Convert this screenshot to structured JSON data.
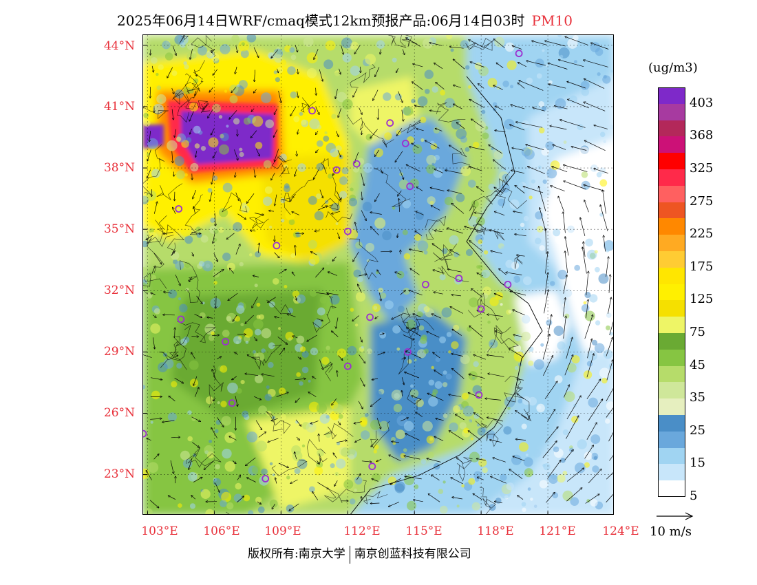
{
  "title": {
    "main": "2025年06月14日WRF/cmaq模式12km预报产品:06月14日03时",
    "pollutant": "PM10",
    "pollutant_color": "#e8303a"
  },
  "axes": {
    "lat_labels": [
      "44°N",
      "41°N",
      "38°N",
      "35°N",
      "32°N",
      "29°N",
      "26°N",
      "23°N"
    ],
    "lon_labels": [
      "103°E",
      "106°E",
      "109°E",
      "112°E",
      "115°E",
      "118°E",
      "121°E",
      "124°E"
    ],
    "label_color": "#e8303a"
  },
  "colorbar": {
    "unit": "(ug/m3)",
    "labels": [
      "403",
      "368",
      "325",
      "275",
      "225",
      "175",
      "125",
      "75",
      "45",
      "35",
      "25",
      "15",
      "5"
    ],
    "colors": [
      "#7e29c9",
      "#a73aa0",
      "#b3285a",
      "#cc1177",
      "#ff0000",
      "#ff2a4a",
      "#ff6060",
      "#ee5522",
      "#ff8800",
      "#ffaa22",
      "#ffcc33",
      "#ffe600",
      "#fff000",
      "#f5e000",
      "#eef566",
      "#6aaa33",
      "#86c542",
      "#b6dc6a",
      "#cfe79a",
      "#e6efbf",
      "#4a8ec7",
      "#6aa8dc",
      "#a0d4f2",
      "#c8e6fa",
      "#ffffff"
    ]
  },
  "vector_reference": {
    "label": "10 m/s"
  },
  "footer": {
    "left": "版权所有:南京大学",
    "right": "南京创蓝科技有限公司"
  },
  "map": {
    "extent": {
      "lon_min": 102.8,
      "lon_max": 124.0,
      "lat_min": 21.0,
      "lat_max": 44.5
    },
    "city_marker_color": "#9b2fd0",
    "cities": [
      {
        "lon": 119.7,
        "lat": 43.6
      },
      {
        "lon": 110.4,
        "lat": 40.8
      },
      {
        "lon": 113.9,
        "lat": 40.2
      },
      {
        "lon": 114.6,
        "lat": 39.2
      },
      {
        "lon": 111.5,
        "lat": 37.9
      },
      {
        "lon": 112.4,
        "lat": 38.2
      },
      {
        "lon": 114.8,
        "lat": 37.1
      },
      {
        "lon": 104.4,
        "lat": 36.0
      },
      {
        "lon": 112.0,
        "lat": 34.9
      },
      {
        "lon": 108.8,
        "lat": 34.2
      },
      {
        "lon": 115.5,
        "lat": 32.3
      },
      {
        "lon": 117.0,
        "lat": 32.6
      },
      {
        "lon": 119.2,
        "lat": 32.3
      },
      {
        "lon": 118.0,
        "lat": 31.1
      },
      {
        "lon": 104.5,
        "lat": 30.6
      },
      {
        "lon": 113.0,
        "lat": 30.7
      },
      {
        "lon": 106.5,
        "lat": 29.5
      },
      {
        "lon": 114.7,
        "lat": 29.0
      },
      {
        "lon": 112.0,
        "lat": 28.3
      },
      {
        "lon": 106.8,
        "lat": 26.5
      },
      {
        "lon": 117.9,
        "lat": 26.9
      },
      {
        "lon": 102.8,
        "lat": 25.0
      },
      {
        "lon": 113.1,
        "lat": 23.4
      },
      {
        "lon": 108.3,
        "lat": 22.8
      }
    ]
  }
}
